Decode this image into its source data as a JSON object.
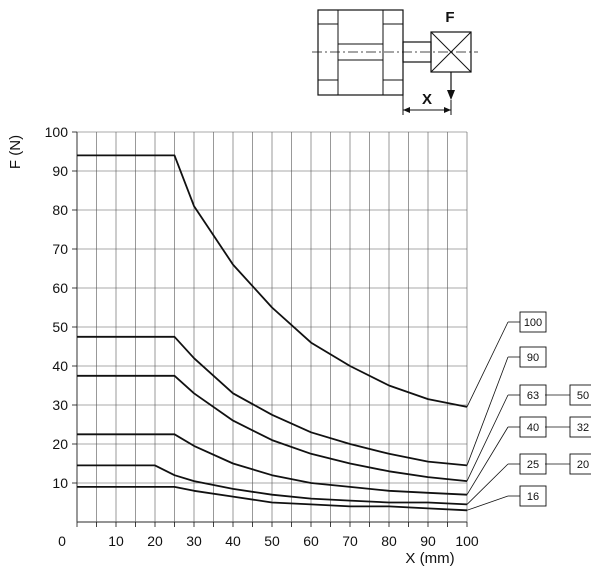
{
  "chart_data": {
    "type": "line",
    "xlabel": "X (mm)",
    "ylabel": "F (N)",
    "xlim": [
      0,
      100
    ],
    "ylim": [
      0,
      100
    ],
    "x_ticks": [
      0,
      10,
      20,
      30,
      40,
      50,
      60,
      70,
      80,
      90,
      100
    ],
    "y_ticks": [
      10,
      20,
      30,
      40,
      50,
      60,
      70,
      80,
      90,
      100
    ],
    "grid": true,
    "series": [
      {
        "name": "100",
        "points": [
          [
            0,
            94
          ],
          [
            25,
            94
          ],
          [
            30,
            81
          ],
          [
            40,
            66
          ],
          [
            50,
            55
          ],
          [
            60,
            46
          ],
          [
            70,
            40
          ],
          [
            80,
            35
          ],
          [
            90,
            31.5
          ],
          [
            100,
            29.5
          ]
        ]
      },
      {
        "name": "90",
        "points": [
          [
            0,
            47.5
          ],
          [
            25,
            47.5
          ],
          [
            30,
            42
          ],
          [
            40,
            33
          ],
          [
            50,
            27.5
          ],
          [
            60,
            23
          ],
          [
            70,
            20
          ],
          [
            80,
            17.5
          ],
          [
            90,
            15.5
          ],
          [
            100,
            14.5
          ]
        ]
      },
      {
        "name": "63 / 50",
        "points": [
          [
            0,
            37.5
          ],
          [
            25,
            37.5
          ],
          [
            30,
            33
          ],
          [
            40,
            26
          ],
          [
            50,
            21
          ],
          [
            60,
            17.5
          ],
          [
            70,
            15
          ],
          [
            80,
            13
          ],
          [
            90,
            11.5
          ],
          [
            100,
            10.5
          ]
        ]
      },
      {
        "name": "40 / 32",
        "points": [
          [
            0,
            22.5
          ],
          [
            25,
            22.5
          ],
          [
            30,
            19.5
          ],
          [
            40,
            15
          ],
          [
            50,
            12
          ],
          [
            60,
            10
          ],
          [
            70,
            9
          ],
          [
            80,
            8
          ],
          [
            90,
            7.5
          ],
          [
            100,
            7
          ]
        ]
      },
      {
        "name": "25 / 20",
        "points": [
          [
            0,
            14.5
          ],
          [
            20,
            14.5
          ],
          [
            25,
            12
          ],
          [
            30,
            10.5
          ],
          [
            40,
            8.5
          ],
          [
            50,
            7
          ],
          [
            60,
            6
          ],
          [
            70,
            5.5
          ],
          [
            80,
            5
          ],
          [
            90,
            5
          ],
          [
            100,
            4.5
          ]
        ]
      },
      {
        "name": "16",
        "points": [
          [
            0,
            9
          ],
          [
            25,
            9
          ],
          [
            30,
            8
          ],
          [
            40,
            6.5
          ],
          [
            50,
            5
          ],
          [
            60,
            4.5
          ],
          [
            70,
            4
          ],
          [
            80,
            4
          ],
          [
            90,
            3.5
          ],
          [
            100,
            3
          ]
        ]
      }
    ],
    "series_labels": [
      {
        "boxes": [
          "100"
        ],
        "series": 0
      },
      {
        "boxes": [
          "90"
        ],
        "series": 1
      },
      {
        "boxes": [
          "63",
          "50"
        ],
        "series": 2
      },
      {
        "boxes": [
          "40",
          "32"
        ],
        "series": 3
      },
      {
        "boxes": [
          "25",
          "20"
        ],
        "series": 4
      },
      {
        "boxes": [
          "16"
        ],
        "series": 5
      }
    ]
  },
  "diagram": {
    "force_label": "F",
    "distance_label": "X"
  }
}
